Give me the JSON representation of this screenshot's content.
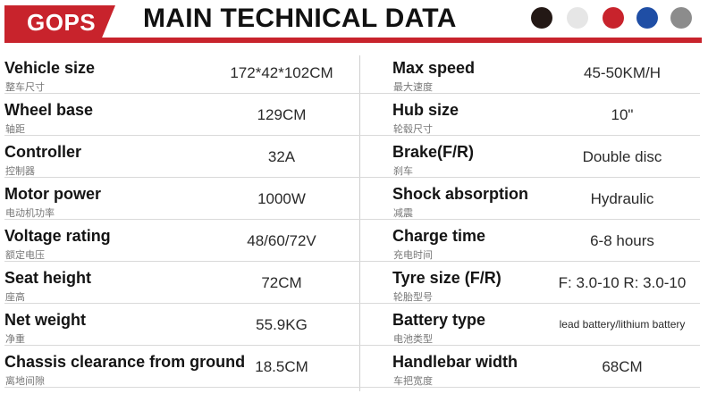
{
  "header": {
    "brand": "GOPS",
    "title": "MAIN TECHNICAL DATA",
    "color_options": [
      {
        "name": "black",
        "hex": "#231815"
      },
      {
        "name": "white",
        "hex": "#e6e6e6"
      },
      {
        "name": "red",
        "hex": "#c8232c"
      },
      {
        "name": "blue",
        "hex": "#1f4ea5"
      },
      {
        "name": "grey",
        "hex": "#8c8c8c"
      }
    ]
  },
  "specs": [
    {
      "left": {
        "label": "Vehicle size",
        "label_cn": "整车尺寸",
        "value": "172*42*102CM"
      },
      "right": {
        "label": "Max speed",
        "label_cn": "最大速度",
        "value": "45-50KM/H"
      }
    },
    {
      "left": {
        "label": "Wheel base",
        "label_cn": "轴距",
        "value": "129CM"
      },
      "right": {
        "label": "Hub size",
        "label_cn": "轮毂尺寸",
        "value": "10\""
      }
    },
    {
      "left": {
        "label": "Controller",
        "label_cn": "控制器",
        "value": "32A"
      },
      "right": {
        "label": "Brake(F/R)",
        "label_cn": "刹车",
        "value": "Double disc"
      }
    },
    {
      "left": {
        "label": "Motor power",
        "label_cn": "电动机功率",
        "value": "1000W"
      },
      "right": {
        "label": "Shock absorption",
        "label_cn": "减震",
        "value": "Hydraulic"
      }
    },
    {
      "left": {
        "label": "Voltage rating",
        "label_cn": "额定电压",
        "value": "48/60/72V"
      },
      "right": {
        "label": "Charge time",
        "label_cn": "充电时间",
        "value": "6-8 hours"
      }
    },
    {
      "left": {
        "label": "Seat height",
        "label_cn": "座高",
        "value": "72CM"
      },
      "right": {
        "label": "Tyre size (F/R)",
        "label_cn": "轮胎型号",
        "value": "F: 3.0-10  R: 3.0-10"
      }
    },
    {
      "left": {
        "label": "Net weight",
        "label_cn": "净重",
        "value": "55.9KG"
      },
      "right": {
        "label": "Battery type",
        "label_cn": "电池类型",
        "value": "lead battery/lithium battery"
      }
    },
    {
      "left": {
        "label": "Chassis clearance from ground",
        "label_cn": "离地间隙",
        "value": "18.5CM"
      },
      "right": {
        "label": "Handlebar width",
        "label_cn": "车把宽度",
        "value": "68CM"
      }
    }
  ]
}
